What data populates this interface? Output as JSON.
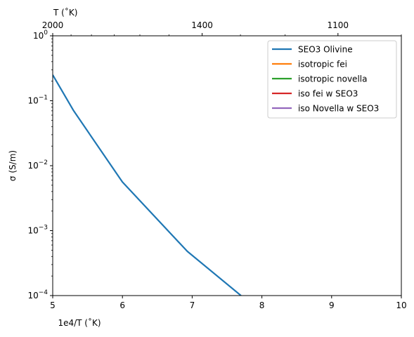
{
  "chart_data": {
    "type": "line",
    "xlabel": "1e4/T ($^\\circ$K)",
    "xlabel_display": "1e4/T (˚K)",
    "ylabel": "σ (S/m)",
    "top_axis_label": "T (˚K)",
    "xlim": [
      5,
      10
    ],
    "ylim": [
      0.0001,
      1
    ],
    "yscale": "log",
    "grid": false,
    "legend_position": "top-right",
    "x_ticks": [
      5,
      6,
      7,
      8,
      9,
      10
    ],
    "x_tick_labels": [
      "5",
      "6",
      "7",
      "8",
      "9",
      "10"
    ],
    "y_ticks": [
      0.0001,
      0.001,
      0.01,
      0.1,
      1
    ],
    "y_tick_labels": [
      {
        "base": "10",
        "exp": "−4"
      },
      {
        "base": "10",
        "exp": "−3"
      },
      {
        "base": "10",
        "exp": "−2"
      },
      {
        "base": "10",
        "exp": "−1"
      },
      {
        "base": "10",
        "exp": "0"
      }
    ],
    "top_ticks": [
      {
        "value": 2000,
        "label": "2000"
      },
      {
        "value": 1400,
        "label": "1400"
      },
      {
        "value": 1100,
        "label": "1100"
      }
    ],
    "top_minor_ticks": [
      1900,
      1800,
      1700,
      1600,
      1500,
      1300,
      1200,
      1000
    ],
    "series": [
      {
        "name": "SEO3 Olivine",
        "color": "#1f77b4",
        "x": [
          5.0,
          5.3,
          6.0,
          6.93,
          7.7
        ],
        "y": [
          0.25,
          0.07,
          0.0056,
          0.00048,
          0.0001
        ]
      },
      {
        "name": "isotropic fei",
        "color": "#ff7f0e",
        "x": [],
        "y": []
      },
      {
        "name": "isotropic novella",
        "color": "#2ca02c",
        "x": [],
        "y": []
      },
      {
        "name": "iso fei w SEO3",
        "color": "#d62728",
        "x": [],
        "y": []
      },
      {
        "name": "iso Novella w SEO3",
        "color": "#9467bd",
        "x": [],
        "y": []
      }
    ]
  }
}
